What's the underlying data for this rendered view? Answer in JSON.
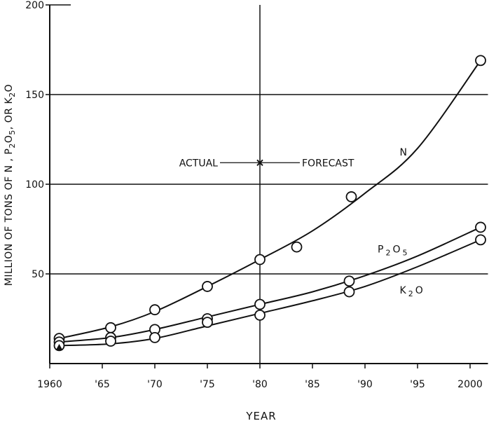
{
  "chart_data": {
    "type": "line",
    "title": "",
    "xlabel": "YEAR",
    "ylabel": "MILLION OF TONS OF N , P2O5 , OR K2O",
    "ylabel_parts": [
      "MILLION OF TONS OF N , P",
      "2",
      "O",
      "5",
      ", OR K",
      "2",
      "O"
    ],
    "xlim": [
      1960,
      2001.7
    ],
    "ylim": [
      0,
      200
    ],
    "xticks": [
      1960,
      1965,
      1970,
      1975,
      1980,
      1985,
      1990,
      1995,
      2000
    ],
    "xtick_labels": [
      "1960",
      "'65",
      "'70",
      "'75",
      "'80",
      "'85",
      "'90",
      "'95",
      "2000"
    ],
    "yticks": [
      50,
      100,
      150,
      200
    ],
    "ytick_labels": [
      "50",
      "100",
      "150",
      "200"
    ],
    "grid_y": [
      50,
      100,
      150
    ],
    "divider_year": 1980,
    "annotation": {
      "left": "ACTUAL",
      "right": "FORECAST",
      "y": 112
    },
    "series": [
      {
        "name": "N",
        "label_parts": [
          "N"
        ],
        "label_pos": [
          1993.3,
          116
        ],
        "points": [
          [
            1960.9,
            14
          ],
          [
            1965.8,
            20
          ],
          [
            1970,
            30
          ],
          [
            1975,
            43
          ],
          [
            1980,
            58
          ],
          [
            1983.5,
            65
          ],
          [
            1988.7,
            93
          ],
          [
            2001,
            169
          ]
        ],
        "curve": [
          [
            1960.9,
            14
          ],
          [
            1965.8,
            20.5
          ],
          [
            1970,
            29
          ],
          [
            1975,
            43
          ],
          [
            1980,
            58
          ],
          [
            1985,
            74
          ],
          [
            1990,
            95
          ],
          [
            1995,
            120
          ],
          [
            2001,
            169
          ]
        ]
      },
      {
        "name": "P2O5",
        "label_parts": [
          "P",
          "2",
          "O",
          "5"
        ],
        "label_pos": [
          1991.2,
          62
        ],
        "points": [
          [
            1960.9,
            12
          ],
          [
            1965.8,
            14.5
          ],
          [
            1970,
            19
          ],
          [
            1975,
            25
          ],
          [
            1980,
            33
          ],
          [
            1988.5,
            46
          ],
          [
            2001,
            76
          ]
        ],
        "curve": [
          [
            1960.9,
            12
          ],
          [
            1965.8,
            14.5
          ],
          [
            1970,
            19
          ],
          [
            1975,
            26
          ],
          [
            1980,
            33
          ],
          [
            1985,
            40
          ],
          [
            1990,
            49
          ],
          [
            1995,
            60
          ],
          [
            2001,
            76
          ]
        ]
      },
      {
        "name": "K2O",
        "label_parts": [
          "K",
          "2",
          "O"
        ],
        "label_pos": [
          1993.3,
          39
        ],
        "points": [
          [
            1960.9,
            10
          ],
          [
            1965.8,
            12.5
          ],
          [
            1970,
            14.5
          ],
          [
            1975,
            23
          ],
          [
            1980,
            27
          ],
          [
            1988.5,
            40
          ],
          [
            2001,
            69
          ]
        ],
        "curve": [
          [
            1960.9,
            10
          ],
          [
            1965.8,
            11
          ],
          [
            1970,
            14
          ],
          [
            1975,
            21
          ],
          [
            1980,
            28
          ],
          [
            1985,
            35
          ],
          [
            1990,
            43
          ],
          [
            1995,
            54
          ],
          [
            2001,
            69
          ]
        ]
      }
    ],
    "triangle_marker": [
      1960.9,
      9
    ]
  }
}
